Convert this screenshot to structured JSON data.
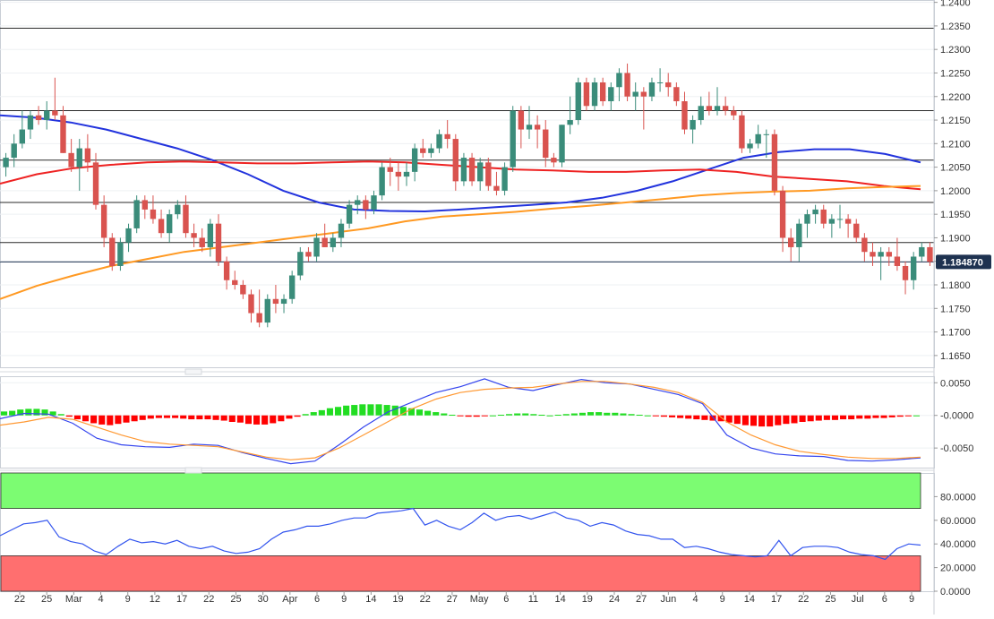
{
  "chart_data": [
    {
      "type": "candlestick",
      "pane": "price",
      "xlabels": [
        "22",
        "25",
        "Mar",
        "4",
        "9",
        "12",
        "17",
        "22",
        "25",
        "30",
        "Apr",
        "6",
        "9",
        "14",
        "19",
        "22",
        "27",
        "May",
        "6",
        "11",
        "14",
        "19",
        "24",
        "27",
        "Jun",
        "4",
        "9",
        "14",
        "17",
        "22",
        "25",
        "Jul",
        "6",
        "9"
      ],
      "yticks": [
        "1.2400",
        "1.2350",
        "1.2300",
        "1.2250",
        "1.2200",
        "1.2150",
        "1.2100",
        "1.2050",
        "1.2000",
        "1.1950",
        "1.1900",
        "1.1850",
        "1.1800",
        "1.1750",
        "1.1700",
        "1.1650"
      ],
      "ylim": [
        1.1625,
        1.2405
      ],
      "price_label": "1.184870",
      "price_label_color": "#1e3250",
      "horizontal_levels": [
        1.2345,
        1.217,
        1.2065,
        1.1975,
        1.189
      ],
      "current_price_line": 1.18487,
      "up_color": "#3a8c7a",
      "down_color": "#d9534f",
      "candles": [
        [
          1.205,
          1.208,
          1.203,
          1.207
        ],
        [
          1.207,
          1.212,
          1.205,
          1.21
        ],
        [
          1.21,
          1.217,
          1.209,
          1.213
        ],
        [
          1.213,
          1.217,
          1.211,
          1.216
        ],
        [
          1.216,
          1.218,
          1.214,
          1.215
        ],
        [
          1.215,
          1.219,
          1.213,
          1.217
        ],
        [
          1.217,
          1.224,
          1.215,
          1.216
        ],
        [
          1.216,
          1.218,
          1.208,
          1.208
        ],
        [
          1.208,
          1.211,
          1.204,
          1.205
        ],
        [
          1.205,
          1.211,
          1.2,
          1.209
        ],
        [
          1.209,
          1.212,
          1.204,
          1.206
        ],
        [
          1.206,
          1.208,
          1.196,
          1.197
        ],
        [
          1.197,
          1.199,
          1.188,
          1.19
        ],
        [
          1.19,
          1.191,
          1.183,
          1.184
        ],
        [
          1.184,
          1.19,
          1.183,
          1.189
        ],
        [
          1.189,
          1.193,
          1.187,
          1.192
        ],
        [
          1.192,
          1.199,
          1.191,
          1.198
        ],
        [
          1.198,
          1.199,
          1.194,
          1.196
        ],
        [
          1.196,
          1.199,
          1.193,
          1.194
        ],
        [
          1.194,
          1.196,
          1.19,
          1.191
        ],
        [
          1.191,
          1.196,
          1.189,
          1.195
        ],
        [
          1.195,
          1.198,
          1.194,
          1.197
        ],
        [
          1.197,
          1.199,
          1.19,
          1.191
        ],
        [
          1.191,
          1.193,
          1.188,
          1.19
        ],
        [
          1.19,
          1.192,
          1.187,
          1.188
        ],
        [
          1.188,
          1.194,
          1.186,
          1.193
        ],
        [
          1.193,
          1.195,
          1.184,
          1.185
        ],
        [
          1.185,
          1.186,
          1.179,
          1.181
        ],
        [
          1.181,
          1.183,
          1.179,
          1.18
        ],
        [
          1.18,
          1.181,
          1.177,
          1.178
        ],
        [
          1.178,
          1.179,
          1.172,
          1.174
        ],
        [
          1.174,
          1.179,
          1.171,
          1.172
        ],
        [
          1.172,
          1.178,
          1.171,
          1.177
        ],
        [
          1.177,
          1.18,
          1.174,
          1.176
        ],
        [
          1.176,
          1.178,
          1.174,
          1.177
        ],
        [
          1.177,
          1.183,
          1.176,
          1.182
        ],
        [
          1.182,
          1.188,
          1.181,
          1.187
        ],
        [
          1.187,
          1.188,
          1.185,
          1.186
        ],
        [
          1.186,
          1.191,
          1.185,
          1.19
        ],
        [
          1.19,
          1.193,
          1.188,
          1.188
        ],
        [
          1.188,
          1.191,
          1.187,
          1.19
        ],
        [
          1.19,
          1.194,
          1.188,
          1.193
        ],
        [
          1.193,
          1.198,
          1.192,
          1.197
        ],
        [
          1.197,
          1.199,
          1.195,
          1.198
        ],
        [
          1.198,
          1.199,
          1.194,
          1.196
        ],
        [
          1.196,
          1.2,
          1.195,
          1.199
        ],
        [
          1.199,
          1.206,
          1.198,
          1.205
        ],
        [
          1.205,
          1.207,
          1.201,
          1.204
        ],
        [
          1.204,
          1.206,
          1.2,
          1.203
        ],
        [
          1.203,
          1.206,
          1.201,
          1.204
        ],
        [
          1.204,
          1.21,
          1.202,
          1.209
        ],
        [
          1.209,
          1.211,
          1.207,
          1.208
        ],
        [
          1.208,
          1.21,
          1.207,
          1.209
        ],
        [
          1.209,
          1.213,
          1.208,
          1.212
        ],
        [
          1.212,
          1.215,
          1.209,
          1.211
        ],
        [
          1.211,
          1.212,
          1.2,
          1.202
        ],
        [
          1.202,
          1.208,
          1.201,
          1.207
        ],
        [
          1.207,
          1.208,
          1.201,
          1.202
        ],
        [
          1.202,
          1.207,
          1.2,
          1.206
        ],
        [
          1.206,
          1.207,
          1.2,
          1.201
        ],
        [
          1.201,
          1.204,
          1.199,
          1.2
        ],
        [
          1.2,
          1.206,
          1.199,
          1.205
        ],
        [
          1.205,
          1.218,
          1.204,
          1.217
        ],
        [
          1.217,
          1.218,
          1.209,
          1.213
        ],
        [
          1.213,
          1.218,
          1.211,
          1.214
        ],
        [
          1.214,
          1.216,
          1.209,
          1.213
        ],
        [
          1.213,
          1.215,
          1.205,
          1.207
        ],
        [
          1.207,
          1.208,
          1.205,
          1.206
        ],
        [
          1.206,
          1.214,
          1.205,
          1.214
        ],
        [
          1.214,
          1.22,
          1.212,
          1.215
        ],
        [
          1.215,
          1.224,
          1.214,
          1.223
        ],
        [
          1.223,
          1.224,
          1.217,
          1.218
        ],
        [
          1.218,
          1.224,
          1.217,
          1.223
        ],
        [
          1.223,
          1.224,
          1.218,
          1.219
        ],
        [
          1.219,
          1.223,
          1.217,
          1.222
        ],
        [
          1.222,
          1.226,
          1.219,
          1.225
        ],
        [
          1.225,
          1.227,
          1.219,
          1.22
        ],
        [
          1.22,
          1.223,
          1.217,
          1.221
        ],
        [
          1.221,
          1.222,
          1.213,
          1.22
        ],
        [
          1.22,
          1.224,
          1.219,
          1.223
        ],
        [
          1.223,
          1.226,
          1.221,
          1.223
        ],
        [
          1.223,
          1.225,
          1.22,
          1.222
        ],
        [
          1.222,
          1.223,
          1.218,
          1.219
        ],
        [
          1.219,
          1.221,
          1.212,
          1.213
        ],
        [
          1.213,
          1.216,
          1.21,
          1.215
        ],
        [
          1.215,
          1.22,
          1.214,
          1.218
        ],
        [
          1.218,
          1.221,
          1.216,
          1.217
        ],
        [
          1.217,
          1.222,
          1.216,
          1.218
        ],
        [
          1.218,
          1.22,
          1.216,
          1.217
        ],
        [
          1.217,
          1.218,
          1.215,
          1.216
        ],
        [
          1.216,
          1.217,
          1.208,
          1.209
        ],
        [
          1.209,
          1.211,
          1.208,
          1.21
        ],
        [
          1.21,
          1.214,
          1.209,
          1.212
        ],
        [
          1.212,
          1.213,
          1.207,
          1.212
        ],
        [
          1.212,
          1.213,
          1.199,
          1.2
        ],
        [
          1.2,
          1.201,
          1.187,
          1.19
        ],
        [
          1.19,
          1.192,
          1.185,
          1.188
        ],
        [
          1.188,
          1.194,
          1.185,
          1.193
        ],
        [
          1.193,
          1.196,
          1.19,
          1.195
        ],
        [
          1.195,
          1.197,
          1.193,
          1.196
        ],
        [
          1.196,
          1.197,
          1.192,
          1.193
        ],
        [
          1.193,
          1.195,
          1.19,
          1.194
        ],
        [
          1.194,
          1.197,
          1.192,
          1.194
        ],
        [
          1.194,
          1.195,
          1.19,
          1.193
        ],
        [
          1.193,
          1.194,
          1.189,
          1.19
        ],
        [
          1.19,
          1.191,
          1.185,
          1.187
        ],
        [
          1.187,
          1.189,
          1.184,
          1.186
        ],
        [
          1.186,
          1.188,
          1.181,
          1.187
        ],
        [
          1.187,
          1.188,
          1.184,
          1.186
        ],
        [
          1.186,
          1.19,
          1.183,
          1.184
        ],
        [
          1.184,
          1.185,
          1.178,
          1.181
        ],
        [
          1.181,
          1.187,
          1.179,
          1.186
        ],
        [
          1.186,
          1.189,
          1.185,
          1.188
        ],
        [
          1.188,
          1.189,
          1.184,
          1.1849
        ]
      ],
      "series": [
        {
          "color": "#2233dd",
          "values": [
            1.216,
            1.2155,
            1.2145,
            1.213,
            1.211,
            1.209,
            1.2065,
            1.2035,
            1.2,
            1.1975,
            1.196,
            1.1957,
            1.1956,
            1.196,
            1.1965,
            1.197,
            1.1975,
            1.1985,
            1.2,
            1.202,
            1.2045,
            1.207,
            1.2082,
            1.2088,
            1.2088,
            1.2078,
            1.206
          ]
        },
        {
          "color": "#ee2222",
          "values": [
            1.2015,
            1.2035,
            1.2048,
            1.2055,
            1.206,
            1.2062,
            1.206,
            1.2058,
            1.2058,
            1.206,
            1.2062,
            1.206,
            1.2055,
            1.205,
            1.2045,
            1.2043,
            1.204,
            1.204,
            1.2043,
            1.2045,
            1.204,
            1.203,
            1.2025,
            1.202,
            1.201,
            1.2003
          ]
        },
        {
          "color": "#ff9922",
          "values": [
            1.177,
            1.1798,
            1.182,
            1.184,
            1.1855,
            1.187,
            1.188,
            1.189,
            1.19,
            1.191,
            1.192,
            1.1935,
            1.1945,
            1.195,
            1.1955,
            1.1962,
            1.1968,
            1.1975,
            1.1982,
            1.199,
            1.1995,
            1.1998,
            1.2,
            1.2005,
            1.2008,
            1.201
          ]
        }
      ]
    },
    {
      "type": "macd",
      "pane": "indicator",
      "yticks": [
        "0.0050",
        "-0.0000",
        "-0.0050"
      ],
      "ylim": [
        -0.008,
        0.006
      ],
      "positive_color": "#22dd22",
      "negative_color": "#ff0000",
      "histogram": [
        0.0006,
        0.0007,
        0.0009,
        0.001,
        0.001,
        0.0009,
        0.0006,
        0.0002,
        -0.0002,
        -0.0006,
        -0.0009,
        -0.0012,
        -0.0014,
        -0.0015,
        -0.0013,
        -0.0011,
        -0.0009,
        -0.0007,
        -0.0005,
        -0.0004,
        -0.0004,
        -0.0004,
        -0.0005,
        -0.0006,
        -0.0006,
        -0.0006,
        -0.0007,
        -0.0008,
        -0.001,
        -0.0011,
        -0.0013,
        -0.0014,
        -0.0014,
        -0.0012,
        -0.0009,
        -0.0005,
        -0.0002,
        0.0002,
        0.0005,
        0.0008,
        0.0011,
        0.0013,
        0.0015,
        0.0016,
        0.0017,
        0.0017,
        0.0017,
        0.0016,
        0.0015,
        0.0013,
        0.0011,
        0.0009,
        0.0007,
        0.0005,
        0.0003,
        0.0001,
        -0.0001,
        -0.0002,
        -0.0002,
        -0.0001,
        0.0,
        0.0001,
        0.0002,
        0.0003,
        0.0003,
        0.0002,
        0.0001,
        0.0,
        0.0001,
        0.0002,
        0.0003,
        0.0004,
        0.0005,
        0.0005,
        0.0004,
        0.0004,
        0.0003,
        0.0002,
        0.0001,
        0.0,
        -0.0001,
        -0.0002,
        -0.0003,
        -0.0004,
        -0.0005,
        -0.0006,
        -0.0007,
        -0.0008,
        -0.0009,
        -0.0011,
        -0.0013,
        -0.0015,
        -0.0016,
        -0.0017,
        -0.0017,
        -0.0015,
        -0.0013,
        -0.0012,
        -0.001,
        -0.0009,
        -0.0008,
        -0.0007,
        -0.0007,
        -0.0006,
        -0.0006,
        -0.0005,
        -0.0005,
        -0.0004,
        -0.0004,
        -0.0003,
        -0.0002,
        -0.0001,
        0.0
      ],
      "series": [
        {
          "color": "#3344ee",
          "values": [
            -0.0005,
            0.0003,
            0.0002,
            -0.0012,
            -0.0035,
            -0.0045,
            -0.0048,
            -0.0049,
            -0.0044,
            -0.0046,
            -0.0057,
            -0.0066,
            -0.0074,
            -0.007,
            -0.0045,
            -0.0018,
            0.0005,
            0.002,
            0.0035,
            0.0044,
            0.0056,
            0.0043,
            0.0038,
            0.0047,
            0.0055,
            0.005,
            0.0048,
            0.004,
            0.0032,
            0.0018,
            -0.003,
            -0.005,
            -0.0059,
            -0.0062,
            -0.0063,
            -0.0069,
            -0.007,
            -0.0068,
            -0.0065
          ]
        },
        {
          "color": "#ff9933",
          "values": [
            -0.0015,
            -0.001,
            -0.0003,
            -0.0006,
            -0.0018,
            -0.003,
            -0.004,
            -0.0044,
            -0.0046,
            -0.0048,
            -0.0056,
            -0.0064,
            -0.0068,
            -0.0065,
            -0.005,
            -0.003,
            -0.001,
            0.001,
            0.0025,
            0.0035,
            0.004,
            0.0042,
            0.0043,
            0.0048,
            0.0052,
            0.0052,
            0.0048,
            0.0043,
            0.0035,
            0.002,
            -0.001,
            -0.003,
            -0.0045,
            -0.0055,
            -0.006,
            -0.0064,
            -0.0066,
            -0.0066,
            -0.0064
          ]
        }
      ]
    },
    {
      "type": "line",
      "pane": "oscillator",
      "yticks": [
        "80.0000",
        "60.0000",
        "40.0000",
        "20.0000",
        "0.0000"
      ],
      "ylim": [
        0,
        100
      ],
      "overbought_zone": [
        70,
        100
      ],
      "oversold_zone": [
        0,
        30
      ],
      "overbought_color": "#7cfc72",
      "oversold_color": "#ff6f6f",
      "series": [
        {
          "color": "#3355ee",
          "values": [
            47,
            52,
            57,
            58,
            60,
            46,
            42,
            40,
            34,
            31,
            38,
            44,
            41,
            42,
            40,
            43,
            38,
            36,
            38,
            34,
            32,
            33,
            36,
            44,
            50,
            52,
            55,
            55,
            57,
            60,
            62,
            62,
            66,
            67,
            68,
            70,
            56,
            60,
            55,
            52,
            58,
            66,
            60,
            63,
            64,
            61,
            64,
            67,
            62,
            60,
            55,
            58,
            56,
            51,
            48,
            47,
            44,
            44,
            37,
            38,
            36,
            33,
            31,
            30,
            29,
            30,
            43,
            30,
            37,
            38,
            38,
            37,
            33,
            31,
            30,
            27,
            36,
            40,
            39
          ]
        }
      ]
    }
  ]
}
